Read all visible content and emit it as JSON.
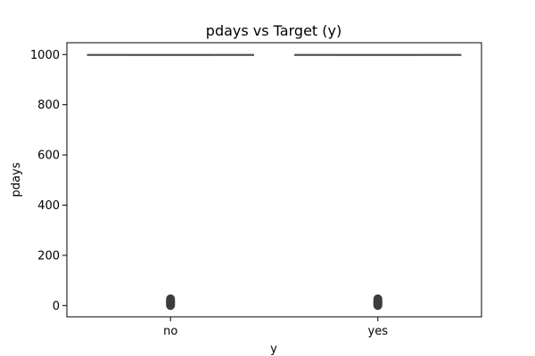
{
  "chart_data": {
    "type": "box",
    "title": "pdays vs Target (y)",
    "xlabel": "y",
    "ylabel": "pdays",
    "categories": [
      "no",
      "yes"
    ],
    "ylim": [
      -45,
      1047
    ],
    "yticks": [
      0,
      200,
      400,
      600,
      800,
      1000
    ],
    "boxes": [
      {
        "category": "no",
        "q1": 999,
        "median": 999,
        "q3": 999,
        "whisker_low": 999,
        "whisker_high": 999,
        "outliers": [
          0,
          1,
          2,
          3,
          4,
          5,
          6,
          7,
          8,
          9,
          10,
          11,
          12,
          13,
          14,
          15,
          16,
          17,
          18,
          19,
          20,
          21,
          22,
          25,
          26,
          27
        ]
      },
      {
        "category": "yes",
        "q1": 999,
        "median": 999,
        "q3": 999,
        "whisker_low": 999,
        "whisker_high": 999,
        "outliers": [
          0,
          1,
          2,
          3,
          4,
          5,
          6,
          7,
          8,
          9,
          10,
          11,
          12,
          13,
          14,
          15,
          16,
          17,
          18,
          19,
          20,
          21,
          22,
          25,
          26,
          27
        ]
      }
    ],
    "colors": {
      "box_line": "#4d4d4d",
      "outlier_fill": "#3d3d3d",
      "axis": "#000000"
    },
    "grid": false
  }
}
